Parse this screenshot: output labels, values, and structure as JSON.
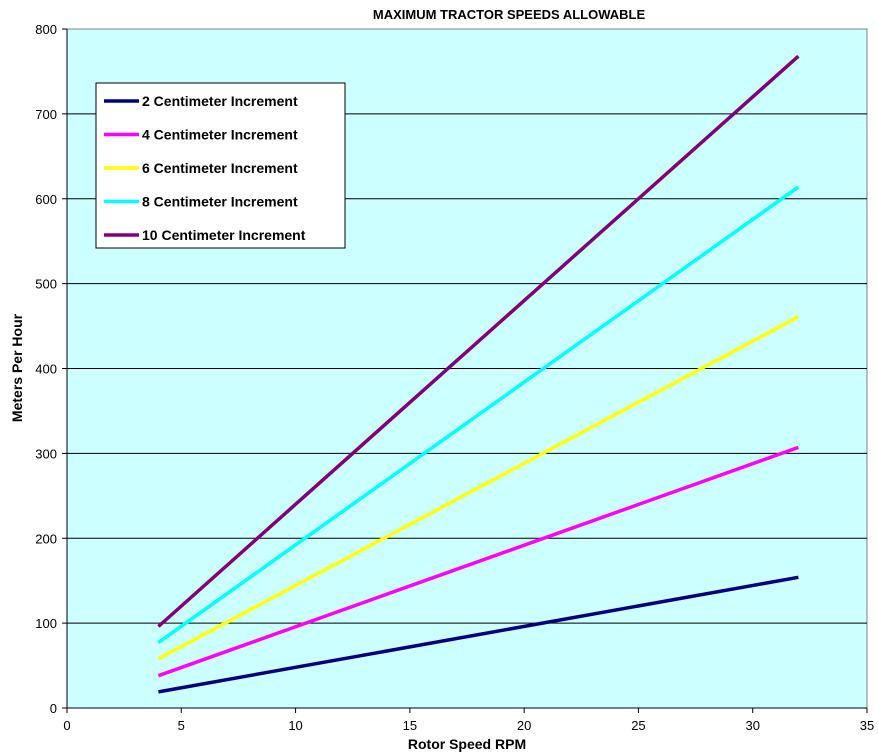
{
  "chart_data": {
    "type": "line",
    "title": "MAXIMUM TRACTOR SPEEDS ALLOWABLE",
    "xlabel": "Rotor Speed RPM",
    "ylabel": "Meters Per Hour",
    "xlim": [
      0,
      35
    ],
    "ylim": [
      0,
      800
    ],
    "x_ticks": [
      "0",
      "5",
      "10",
      "15",
      "20",
      "25",
      "30",
      "35"
    ],
    "y_ticks": [
      "0",
      "100",
      "200",
      "300",
      "400",
      "500",
      "600",
      "700",
      "800"
    ],
    "grid": "horizontal",
    "legend_position": "top-left",
    "plot_background": "#ccffff",
    "series": [
      {
        "name": "2 Centimeter Increment",
        "color": "#000080",
        "points": [
          [
            4,
            19
          ],
          [
            32,
            154
          ]
        ]
      },
      {
        "name": "4 Centimeter Increment",
        "color": "#ff00ff",
        "points": [
          [
            4,
            38
          ],
          [
            32,
            307
          ]
        ]
      },
      {
        "name": "6 Centimeter Increment",
        "color": "#ffff00",
        "points": [
          [
            4,
            58
          ],
          [
            32,
            461
          ]
        ]
      },
      {
        "name": "8 Centimeter Increment",
        "color": "#00ffff",
        "points": [
          [
            4,
            77
          ],
          [
            32,
            614
          ]
        ]
      },
      {
        "name": "10 Centimeter Increment",
        "color": "#800080",
        "points": [
          [
            4,
            96
          ],
          [
            32,
            768
          ]
        ]
      }
    ]
  }
}
